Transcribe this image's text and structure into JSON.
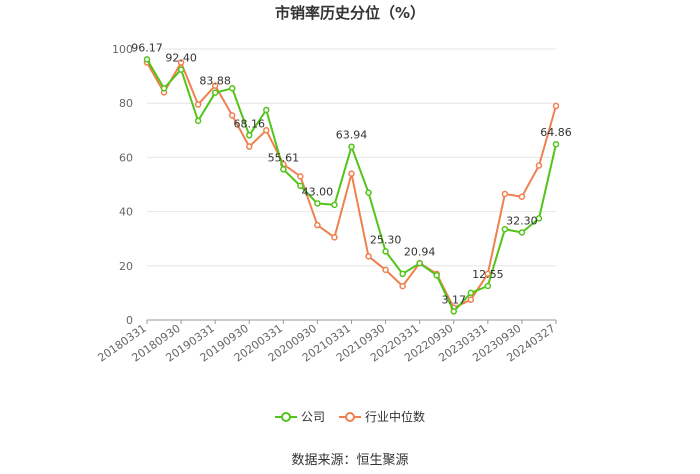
{
  "chart_data": {
    "type": "line",
    "title": "市销率历史分位（%）",
    "ylim": [
      0,
      100
    ],
    "yticks": [
      0,
      20,
      40,
      60,
      80,
      100
    ],
    "grid": true,
    "legend_position": "bottom",
    "x_tick_labels": [
      "20180331",
      "20180930",
      "20190331",
      "20190930",
      "20200331",
      "20200930",
      "20210331",
      "20210930",
      "20220331",
      "20220930",
      "20230331",
      "20230930",
      "20240327"
    ],
    "x": [
      "20180331",
      "20180630",
      "20180930",
      "20181231",
      "20190331",
      "20190630",
      "20190930",
      "20191231",
      "20200331",
      "20200630",
      "20200930",
      "20201231",
      "20210331",
      "20210630",
      "20210930",
      "20211231",
      "20220331",
      "20220630",
      "20220930",
      "20221231",
      "20230331",
      "20230630",
      "20230930",
      "20231231",
      "20240327"
    ],
    "series": [
      {
        "name": "公司",
        "color": "#52c41a",
        "values": [
          96.17,
          85.5,
          92.4,
          73.5,
          83.88,
          85.5,
          68.16,
          77.5,
          55.61,
          49.5,
          43.0,
          42.5,
          63.94,
          47.0,
          25.3,
          17.0,
          20.94,
          16.5,
          3.17,
          10.0,
          12.55,
          33.5,
          32.3,
          37.5,
          64.86
        ],
        "data_labels": {
          "0": "96.17",
          "2": "92.40",
          "4": "83.88",
          "6": "68.16",
          "8": "55.61",
          "10": "43.00",
          "12": "63.94",
          "14": "25.30",
          "16": "20.94",
          "18": "3.17",
          "20": "12.55",
          "22": "32.30",
          "24": "64.86"
        }
      },
      {
        "name": "行业中位数",
        "color": "#f0804f",
        "values": [
          95.0,
          84.0,
          95.0,
          79.5,
          86.5,
          75.5,
          64.0,
          70.0,
          57.5,
          53.0,
          35.0,
          30.5,
          54.0,
          23.5,
          18.5,
          12.5,
          21.0,
          17.0,
          4.5,
          7.5,
          17.0,
          46.5,
          45.5,
          57.0,
          79.0
        ]
      }
    ]
  },
  "source": "数据来源：恒生聚源"
}
